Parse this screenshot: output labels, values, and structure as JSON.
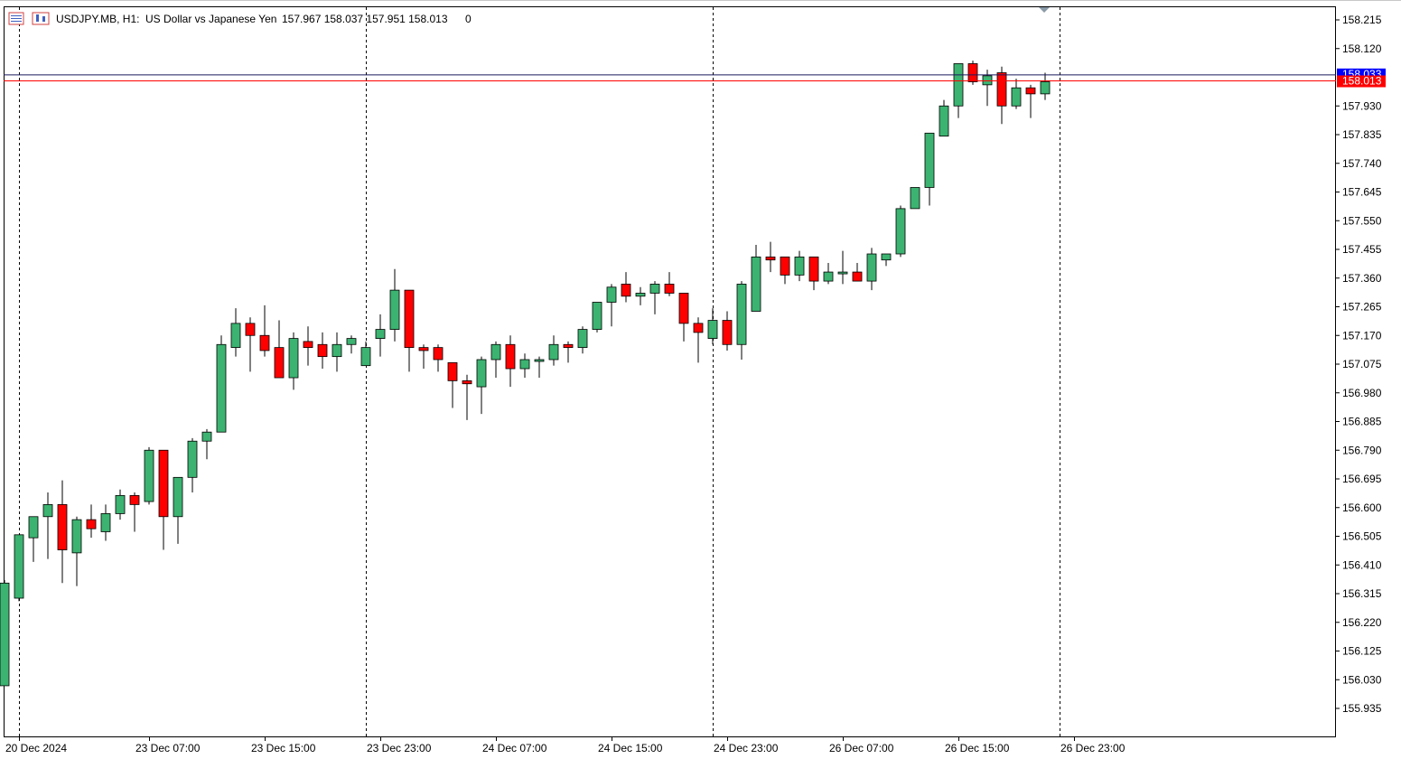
{
  "header": {
    "symbol": "USDJPY.MB, H1:",
    "description": "US Dollar vs Japanese Yen",
    "ohlc": "157.967 158.037 157.951 158.013",
    "volume": "0"
  },
  "colors": {
    "bull": "#3cb371",
    "bear": "#ff0000",
    "bid_line": "#ff0000",
    "ask_line": "#1a1a5e",
    "ask_label_bg": "#0000ff",
    "bid_label_bg": "#ff0000",
    "grid": "#000000"
  },
  "chart_data": {
    "type": "candlestick",
    "symbol": "USDJPY.MB",
    "timeframe": "H1",
    "ylim": [
      155.88,
      158.25
    ],
    "y_ticks": [
      "158.215",
      "158.120",
      "157.930",
      "157.835",
      "157.740",
      "157.645",
      "157.550",
      "157.455",
      "157.360",
      "157.265",
      "157.170",
      "157.075",
      "156.980",
      "156.885",
      "156.790",
      "156.695",
      "156.600",
      "156.505",
      "156.410",
      "156.315",
      "156.220",
      "156.125",
      "156.030",
      "155.935"
    ],
    "x_labels": [
      {
        "index": 1,
        "label": "20 Dec 2024"
      },
      {
        "index": 10,
        "label": "23 Dec 07:00"
      },
      {
        "index": 18,
        "label": "23 Dec 15:00"
      },
      {
        "index": 26,
        "label": "23 Dec 23:00"
      },
      {
        "index": 34,
        "label": "24 Dec 07:00"
      },
      {
        "index": 42,
        "label": "24 Dec 15:00"
      },
      {
        "index": 50,
        "label": "24 Dec 23:00"
      },
      {
        "index": 58,
        "label": "26 Dec 07:00"
      },
      {
        "index": 66,
        "label": "26 Dec 15:00"
      },
      {
        "index": 74,
        "label": "26 Dec 23:00"
      }
    ],
    "period_separators": [
      1,
      25,
      49,
      73
    ],
    "bid": 158.013,
    "bid_label": "158.013",
    "ask": 158.033,
    "ask_label": "158.033",
    "candles": [
      {
        "o": 156.01,
        "h": 156.36,
        "l": 156.01,
        "c": 156.35
      },
      {
        "o": 156.3,
        "h": 156.51,
        "l": 156.29,
        "c": 156.51
      },
      {
        "o": 156.5,
        "h": 156.57,
        "l": 156.42,
        "c": 156.57
      },
      {
        "o": 156.57,
        "h": 156.65,
        "l": 156.43,
        "c": 156.61
      },
      {
        "o": 156.61,
        "h": 156.69,
        "l": 156.35,
        "c": 156.46
      },
      {
        "o": 156.45,
        "h": 156.57,
        "l": 156.34,
        "c": 156.56
      },
      {
        "o": 156.56,
        "h": 156.61,
        "l": 156.5,
        "c": 156.53
      },
      {
        "o": 156.52,
        "h": 156.61,
        "l": 156.49,
        "c": 156.58
      },
      {
        "o": 156.58,
        "h": 156.66,
        "l": 156.56,
        "c": 156.64
      },
      {
        "o": 156.64,
        "h": 156.65,
        "l": 156.52,
        "c": 156.61
      },
      {
        "o": 156.62,
        "h": 156.8,
        "l": 156.61,
        "c": 156.79
      },
      {
        "o": 156.79,
        "h": 156.79,
        "l": 156.46,
        "c": 156.57
      },
      {
        "o": 156.57,
        "h": 156.7,
        "l": 156.48,
        "c": 156.7
      },
      {
        "o": 156.7,
        "h": 156.83,
        "l": 156.65,
        "c": 156.82
      },
      {
        "o": 156.82,
        "h": 156.86,
        "l": 156.76,
        "c": 156.85
      },
      {
        "o": 156.85,
        "h": 157.17,
        "l": 156.85,
        "c": 157.14
      },
      {
        "o": 157.13,
        "h": 157.26,
        "l": 157.1,
        "c": 157.21
      },
      {
        "o": 157.21,
        "h": 157.23,
        "l": 157.05,
        "c": 157.17
      },
      {
        "o": 157.17,
        "h": 157.27,
        "l": 157.1,
        "c": 157.12
      },
      {
        "o": 157.13,
        "h": 157.22,
        "l": 157.03,
        "c": 157.03
      },
      {
        "o": 157.03,
        "h": 157.18,
        "l": 156.99,
        "c": 157.16
      },
      {
        "o": 157.15,
        "h": 157.2,
        "l": 157.07,
        "c": 157.13
      },
      {
        "o": 157.14,
        "h": 157.18,
        "l": 157.06,
        "c": 157.1
      },
      {
        "o": 157.1,
        "h": 157.18,
        "l": 157.05,
        "c": 157.14
      },
      {
        "o": 157.14,
        "h": 157.17,
        "l": 157.11,
        "c": 157.16
      },
      {
        "o": 157.07,
        "h": 157.15,
        "l": 157.07,
        "c": 157.13
      },
      {
        "o": 157.16,
        "h": 157.24,
        "l": 157.1,
        "c": 157.19
      },
      {
        "o": 157.19,
        "h": 157.39,
        "l": 157.15,
        "c": 157.32
      },
      {
        "o": 157.32,
        "h": 157.32,
        "l": 157.05,
        "c": 157.13
      },
      {
        "o": 157.13,
        "h": 157.14,
        "l": 157.06,
        "c": 157.12
      },
      {
        "o": 157.13,
        "h": 157.14,
        "l": 157.05,
        "c": 157.09
      },
      {
        "o": 157.08,
        "h": 157.08,
        "l": 156.93,
        "c": 157.02
      },
      {
        "o": 157.02,
        "h": 157.04,
        "l": 156.89,
        "c": 157.01
      },
      {
        "o": 157.0,
        "h": 157.1,
        "l": 156.91,
        "c": 157.09
      },
      {
        "o": 157.09,
        "h": 157.15,
        "l": 157.03,
        "c": 157.14
      },
      {
        "o": 157.14,
        "h": 157.17,
        "l": 157.0,
        "c": 157.06
      },
      {
        "o": 157.06,
        "h": 157.11,
        "l": 157.03,
        "c": 157.09
      },
      {
        "o": 157.09,
        "h": 157.1,
        "l": 157.03,
        "c": 157.09
      },
      {
        "o": 157.09,
        "h": 157.17,
        "l": 157.07,
        "c": 157.14
      },
      {
        "o": 157.14,
        "h": 157.15,
        "l": 157.08,
        "c": 157.13
      },
      {
        "o": 157.13,
        "h": 157.2,
        "l": 157.11,
        "c": 157.19
      },
      {
        "o": 157.19,
        "h": 157.28,
        "l": 157.18,
        "c": 157.28
      },
      {
        "o": 157.28,
        "h": 157.34,
        "l": 157.2,
        "c": 157.33
      },
      {
        "o": 157.34,
        "h": 157.38,
        "l": 157.28,
        "c": 157.3
      },
      {
        "o": 157.3,
        "h": 157.33,
        "l": 157.27,
        "c": 157.31
      },
      {
        "o": 157.31,
        "h": 157.35,
        "l": 157.24,
        "c": 157.34
      },
      {
        "o": 157.34,
        "h": 157.38,
        "l": 157.3,
        "c": 157.31
      },
      {
        "o": 157.31,
        "h": 157.31,
        "l": 157.15,
        "c": 157.21
      },
      {
        "o": 157.21,
        "h": 157.23,
        "l": 157.08,
        "c": 157.18
      },
      {
        "o": 157.16,
        "h": 157.26,
        "l": 157.14,
        "c": 157.22
      },
      {
        "o": 157.22,
        "h": 157.25,
        "l": 157.12,
        "c": 157.14
      },
      {
        "o": 157.14,
        "h": 157.35,
        "l": 157.09,
        "c": 157.34
      },
      {
        "o": 157.25,
        "h": 157.47,
        "l": 157.25,
        "c": 157.43
      },
      {
        "o": 157.43,
        "h": 157.48,
        "l": 157.38,
        "c": 157.42
      },
      {
        "o": 157.43,
        "h": 157.43,
        "l": 157.34,
        "c": 157.37
      },
      {
        "o": 157.37,
        "h": 157.45,
        "l": 157.35,
        "c": 157.43
      },
      {
        "o": 157.43,
        "h": 157.43,
        "l": 157.32,
        "c": 157.35
      },
      {
        "o": 157.35,
        "h": 157.41,
        "l": 157.34,
        "c": 157.38
      },
      {
        "o": 157.38,
        "h": 157.45,
        "l": 157.34,
        "c": 157.38
      },
      {
        "o": 157.38,
        "h": 157.41,
        "l": 157.35,
        "c": 157.35
      },
      {
        "o": 157.35,
        "h": 157.46,
        "l": 157.32,
        "c": 157.44
      },
      {
        "o": 157.42,
        "h": 157.44,
        "l": 157.4,
        "c": 157.44
      },
      {
        "o": 157.44,
        "h": 157.6,
        "l": 157.43,
        "c": 157.59
      },
      {
        "o": 157.59,
        "h": 157.66,
        "l": 157.59,
        "c": 157.66
      },
      {
        "o": 157.66,
        "h": 157.84,
        "l": 157.6,
        "c": 157.84
      },
      {
        "o": 157.83,
        "h": 157.95,
        "l": 157.83,
        "c": 157.93
      },
      {
        "o": 157.93,
        "h": 158.07,
        "l": 157.89,
        "c": 158.07
      },
      {
        "o": 158.07,
        "h": 158.08,
        "l": 158.0,
        "c": 158.01
      },
      {
        "o": 158.0,
        "h": 158.05,
        "l": 157.93,
        "c": 158.03
      },
      {
        "o": 158.04,
        "h": 158.06,
        "l": 157.87,
        "c": 157.93
      },
      {
        "o": 157.93,
        "h": 158.02,
        "l": 157.92,
        "c": 157.99
      },
      {
        "o": 157.99,
        "h": 158.0,
        "l": 157.89,
        "c": 157.97
      },
      {
        "o": 157.97,
        "h": 158.04,
        "l": 157.95,
        "c": 158.01
      }
    ]
  }
}
